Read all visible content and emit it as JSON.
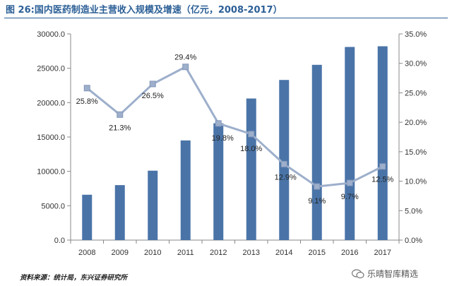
{
  "title": "图 26:国内医药制造业主营收入规模及增速（亿元，2008-2017）",
  "source": "资料来源：统计局，东兴证券研究所",
  "watermark": "乐晴智库精选",
  "colors": {
    "bar": "#4a74a8",
    "line": "#9dafcb",
    "marker": "#9dafcb",
    "title": "#2b5f96"
  },
  "chart_data": {
    "type": "bar+line",
    "categories": [
      "2008",
      "2009",
      "2010",
      "2011",
      "2012",
      "2013",
      "2014",
      "2015",
      "2016",
      "2017"
    ],
    "series": [
      {
        "name": "主营收入（亿元）",
        "type": "bar",
        "axis": "left",
        "values": [
          6600,
          8000,
          10100,
          14500,
          17000,
          20600,
          23300,
          25500,
          28100,
          28200
        ]
      },
      {
        "name": "增速",
        "type": "line",
        "axis": "right",
        "values": [
          25.8,
          21.3,
          26.5,
          29.4,
          19.8,
          18.0,
          12.9,
          9.1,
          9.7,
          12.5
        ],
        "labels": [
          "25.8%",
          "21.3%",
          "26.5%",
          "29.4%",
          "19.8%",
          "18.0%",
          "12.9%",
          "9.1%",
          "9.7%",
          "12.5%"
        ]
      }
    ],
    "y_left": {
      "min": 0,
      "max": 30000,
      "step": 5000,
      "tick_labels": [
        "0.0",
        "5000.0",
        "10000.0",
        "15000.0",
        "20000.0",
        "25000.0",
        "30000.0"
      ]
    },
    "y_right": {
      "min": 0,
      "max": 35,
      "step": 5,
      "tick_labels": [
        "0.0%",
        "5.0%",
        "10.0%",
        "15.0%",
        "20.0%",
        "25.0%",
        "30.0%",
        "35.0%"
      ]
    },
    "grid": false,
    "legend": "none"
  }
}
